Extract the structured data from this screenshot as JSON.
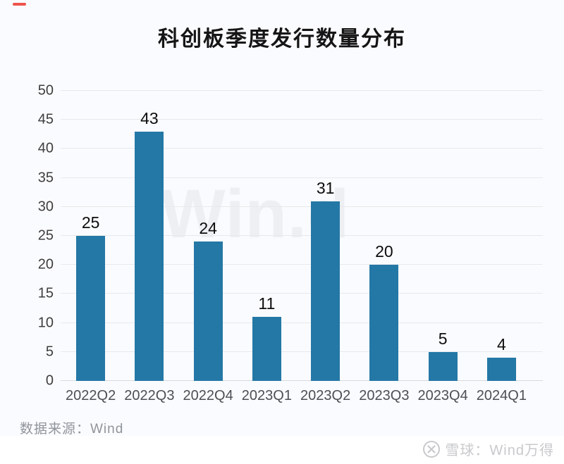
{
  "decor": {
    "top_left_dash_color": "#ee544d"
  },
  "chart_data": {
    "type": "bar",
    "title": "科创板季度发行数量分布",
    "categories": [
      "2022Q2",
      "2022Q3",
      "2022Q4",
      "2023Q1",
      "2023Q2",
      "2023Q3",
      "2023Q4",
      "2024Q1"
    ],
    "values": [
      25,
      43,
      24,
      11,
      31,
      20,
      5,
      4
    ],
    "ylim": [
      0,
      50
    ],
    "yticks": [
      0,
      5,
      10,
      15,
      20,
      25,
      30,
      35,
      40,
      45,
      50
    ],
    "bar_color": "#2478a6",
    "grid": "horizontal gridlines on",
    "value_labels": "shown above each bar",
    "legend": "none",
    "watermark": "Win.d",
    "xlabel": "",
    "ylabel": ""
  },
  "footer": {
    "source_label": "数据来源：Wind",
    "brand": "雪球：Wind万得",
    "brand_icon": "xueqiu-logo-icon"
  }
}
